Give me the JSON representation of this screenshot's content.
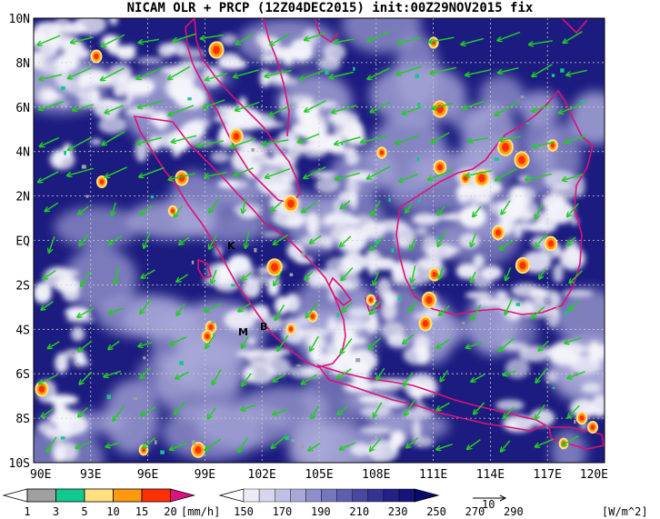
{
  "title": "NICAM OLR + PRCP (12Z04DEC2015) init:00Z29NOV2015 fix",
  "map": {
    "lon_range": [
      90,
      120
    ],
    "lat_range": [
      -10,
      10
    ],
    "x_ticks": [
      "90E",
      "93E",
      "96E",
      "99E",
      "102E",
      "105E",
      "108E",
      "111E",
      "114E",
      "117E",
      "120E"
    ],
    "y_ticks": [
      "10N",
      "8N",
      "6N",
      "4N",
      "2N",
      "EQ",
      "2S",
      "4S",
      "6S",
      "8S",
      "10S"
    ],
    "markers": [
      {
        "label": "K",
        "lon": 100.3,
        "lat": -0.2
      },
      {
        "label": "M",
        "lon": 100.9,
        "lat": -4.3
      },
      {
        "label": "B",
        "lon": 102.3,
        "lat": -4.1
      }
    ],
    "vector_ref_label": "10"
  },
  "colors": {
    "olr_dark": "#1a1a7a",
    "olr_mid": "#3a3a9e",
    "olr_light": "#a8a8d8",
    "cloud": "#f4f4fb",
    "coast": "#dd1177",
    "wind": "#22cc22"
  },
  "prcp_colorbar": {
    "labels": [
      "1",
      "3",
      "5",
      "10",
      "15",
      "20"
    ],
    "unit": "[mm/h]",
    "colors": [
      "#ffffff",
      "#a0a0a0",
      "#10c890",
      "#ffe080",
      "#ff9a10",
      "#ff3000",
      "#e01080"
    ]
  },
  "olr_colorbar": {
    "labels": [
      "150",
      "170",
      "190",
      "210",
      "230",
      "250",
      "270",
      "290"
    ],
    "unit": "[W/m^2]",
    "colors": [
      "#ffffff",
      "#ececf8",
      "#d6d6ee",
      "#c0c0e4",
      "#a8a8d8",
      "#8e8ecb",
      "#7676bd",
      "#5e5eaf",
      "#4848a1",
      "#333393",
      "#222285",
      "#151578",
      "#0a0a6a"
    ]
  }
}
